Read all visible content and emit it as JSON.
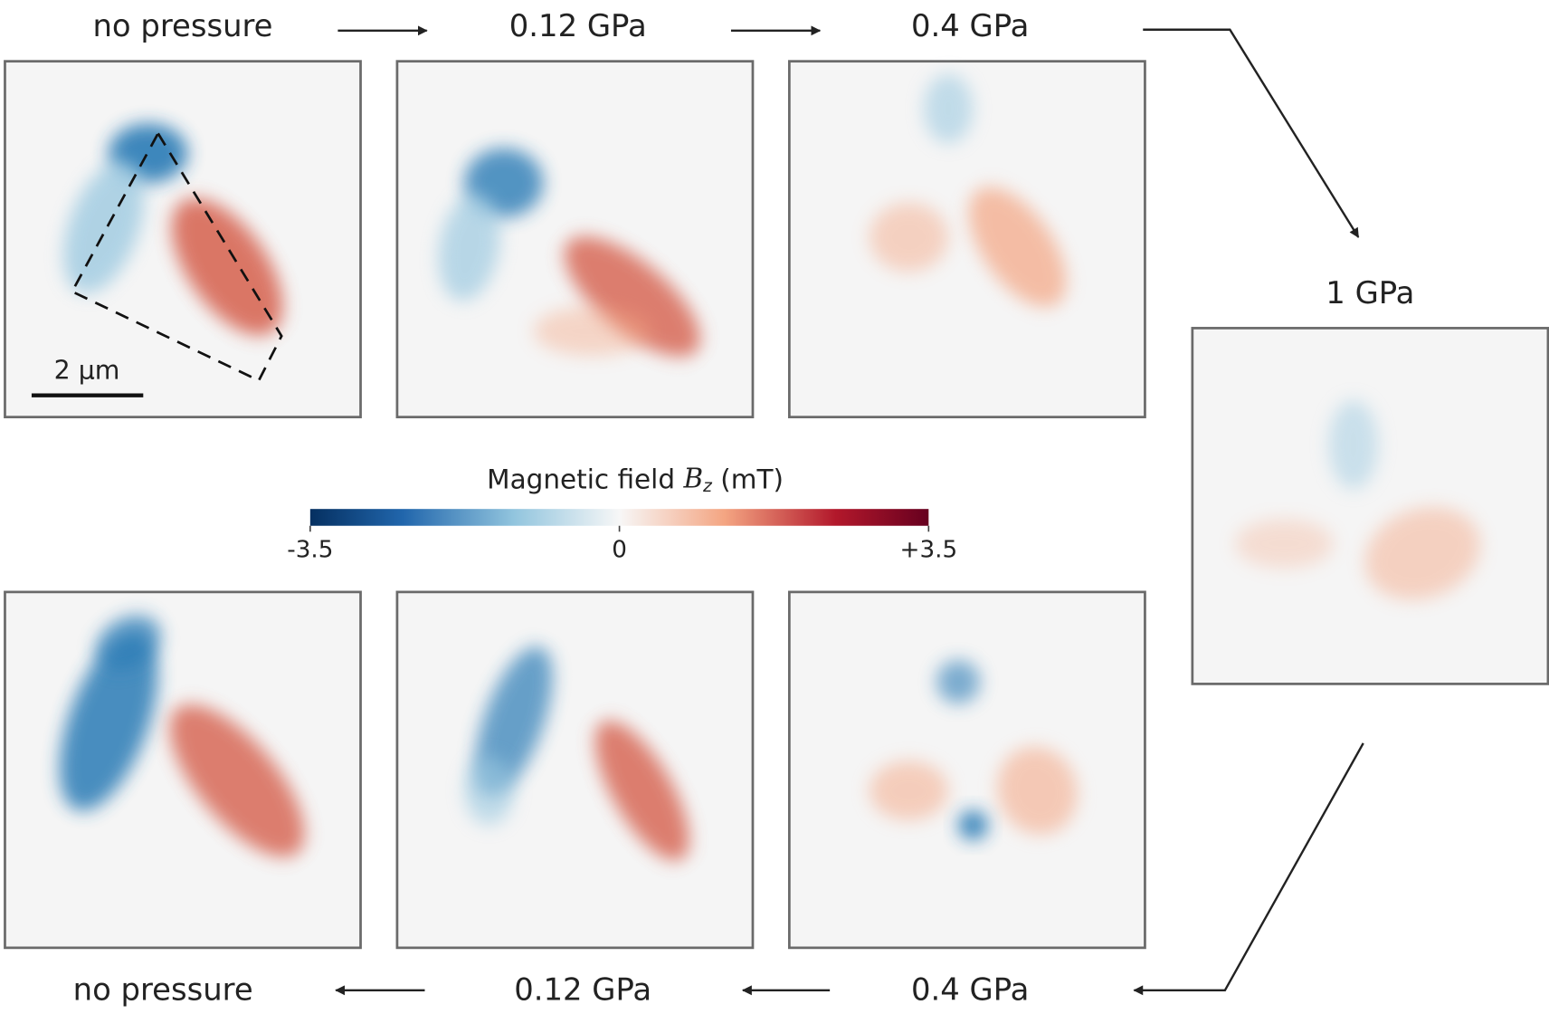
{
  "top_row": {
    "labels": [
      "no pressure",
      "0.12 GPa",
      "0.4 GPa"
    ]
  },
  "right_panel": {
    "label": "1 GPa"
  },
  "bottom_row": {
    "labels": [
      "no pressure",
      "0.12 GPa",
      "0.4 GPa"
    ]
  },
  "scale_bar": {
    "label": "2 μm"
  },
  "colorbar": {
    "title": {
      "prefix": "Magnetic field",
      "symbol": "B",
      "subscript": "z",
      "unit": "(mT)"
    },
    "lim": [
      -3.5,
      3.5
    ],
    "ticks": [
      {
        "value": -3.5,
        "label": "-3.5"
      },
      0,
      {
        "value": 3.5,
        "label": "+3.5"
      }
    ]
  }
}
